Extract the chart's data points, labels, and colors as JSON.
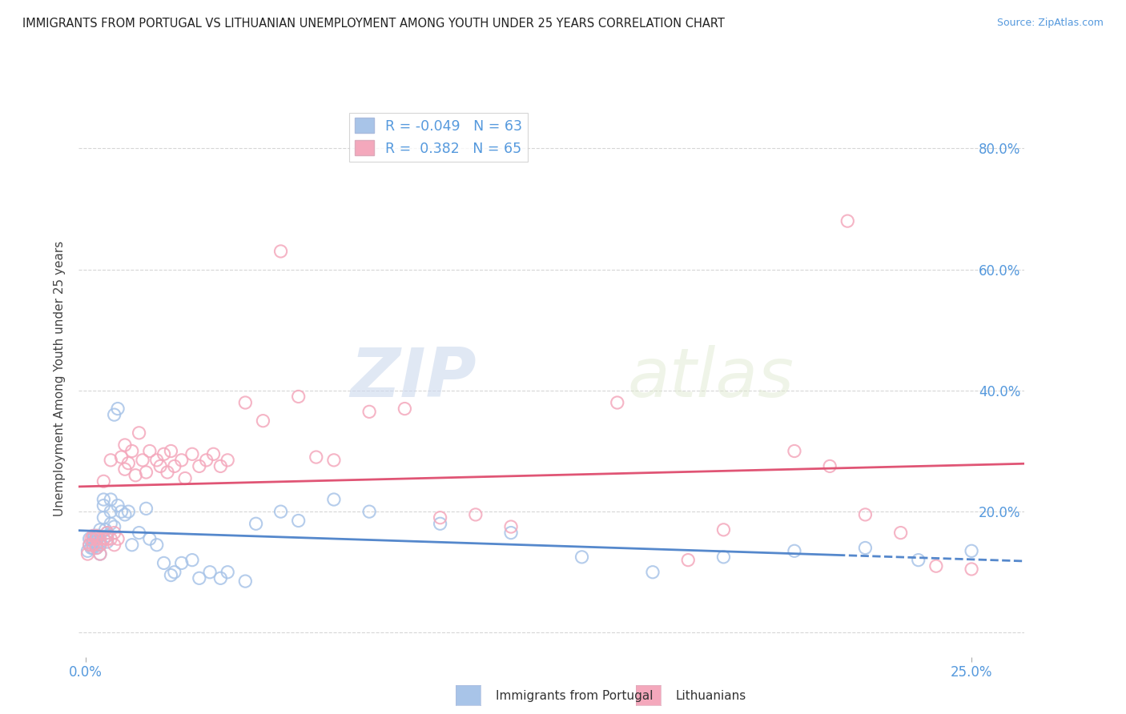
{
  "title": "IMMIGRANTS FROM PORTUGAL VS LITHUANIAN UNEMPLOYMENT AMONG YOUTH UNDER 25 YEARS CORRELATION CHART",
  "source": "Source: ZipAtlas.com",
  "ylabel": "Unemployment Among Youth under 25 years",
  "y_ticks": [
    0.0,
    0.2,
    0.4,
    0.6,
    0.8
  ],
  "y_ticklabels": [
    "",
    "20.0%",
    "40.0%",
    "60.0%",
    "80.0%"
  ],
  "ylim": [
    -0.04,
    0.88
  ],
  "xlim": [
    -0.002,
    0.265
  ],
  "legend_labels": [
    "Immigrants from Portugal",
    "Lithuanians"
  ],
  "R_portugal": -0.049,
  "N_portugal": 63,
  "R_lithuanian": 0.382,
  "N_lithuanian": 65,
  "color_portugal": "#a8c4e8",
  "color_lithuanian": "#f4a8bc",
  "line_color_portugal": "#5588cc",
  "line_color_lithuanian": "#e05575",
  "background_color": "#ffffff",
  "grid_color": "#cccccc",
  "title_color": "#222222",
  "axis_label_color": "#5599dd",
  "watermark_zip": "ZIP",
  "watermark_atlas": "atlas",
  "portugal_x": [
    0.0005,
    0.001,
    0.001,
    0.0015,
    0.002,
    0.002,
    0.002,
    0.0025,
    0.003,
    0.003,
    0.003,
    0.003,
    0.0035,
    0.004,
    0.004,
    0.004,
    0.004,
    0.005,
    0.005,
    0.005,
    0.0055,
    0.006,
    0.006,
    0.006,
    0.007,
    0.007,
    0.007,
    0.008,
    0.008,
    0.009,
    0.009,
    0.01,
    0.011,
    0.012,
    0.013,
    0.015,
    0.017,
    0.018,
    0.02,
    0.022,
    0.024,
    0.025,
    0.027,
    0.03,
    0.032,
    0.035,
    0.038,
    0.04,
    0.045,
    0.048,
    0.055,
    0.06,
    0.07,
    0.08,
    0.1,
    0.12,
    0.14,
    0.16,
    0.18,
    0.2,
    0.22,
    0.235,
    0.25
  ],
  "portugal_y": [
    0.135,
    0.155,
    0.145,
    0.14,
    0.155,
    0.15,
    0.14,
    0.16,
    0.15,
    0.145,
    0.16,
    0.14,
    0.16,
    0.15,
    0.145,
    0.17,
    0.13,
    0.21,
    0.22,
    0.19,
    0.17,
    0.15,
    0.165,
    0.16,
    0.22,
    0.2,
    0.18,
    0.175,
    0.36,
    0.37,
    0.21,
    0.2,
    0.195,
    0.2,
    0.145,
    0.165,
    0.205,
    0.155,
    0.145,
    0.115,
    0.095,
    0.1,
    0.115,
    0.12,
    0.09,
    0.1,
    0.09,
    0.1,
    0.085,
    0.18,
    0.2,
    0.185,
    0.22,
    0.2,
    0.18,
    0.165,
    0.125,
    0.1,
    0.125,
    0.135,
    0.14,
    0.12,
    0.135
  ],
  "lithuanian_x": [
    0.0005,
    0.001,
    0.0015,
    0.002,
    0.002,
    0.003,
    0.003,
    0.003,
    0.004,
    0.004,
    0.004,
    0.005,
    0.005,
    0.006,
    0.006,
    0.007,
    0.007,
    0.008,
    0.008,
    0.009,
    0.01,
    0.011,
    0.011,
    0.012,
    0.013,
    0.014,
    0.015,
    0.016,
    0.017,
    0.018,
    0.02,
    0.021,
    0.022,
    0.023,
    0.024,
    0.025,
    0.027,
    0.028,
    0.03,
    0.032,
    0.034,
    0.036,
    0.038,
    0.04,
    0.045,
    0.05,
    0.055,
    0.06,
    0.065,
    0.07,
    0.08,
    0.09,
    0.1,
    0.11,
    0.12,
    0.15,
    0.17,
    0.18,
    0.2,
    0.21,
    0.215,
    0.22,
    0.23,
    0.24,
    0.25
  ],
  "lithuanian_y": [
    0.13,
    0.145,
    0.155,
    0.16,
    0.145,
    0.155,
    0.14,
    0.16,
    0.145,
    0.155,
    0.13,
    0.25,
    0.155,
    0.155,
    0.165,
    0.285,
    0.155,
    0.165,
    0.145,
    0.155,
    0.29,
    0.27,
    0.31,
    0.28,
    0.3,
    0.26,
    0.33,
    0.285,
    0.265,
    0.3,
    0.285,
    0.275,
    0.295,
    0.265,
    0.3,
    0.275,
    0.285,
    0.255,
    0.295,
    0.275,
    0.285,
    0.295,
    0.275,
    0.285,
    0.38,
    0.35,
    0.63,
    0.39,
    0.29,
    0.285,
    0.365,
    0.37,
    0.19,
    0.195,
    0.175,
    0.38,
    0.12,
    0.17,
    0.3,
    0.275,
    0.68,
    0.195,
    0.165,
    0.11,
    0.105
  ]
}
